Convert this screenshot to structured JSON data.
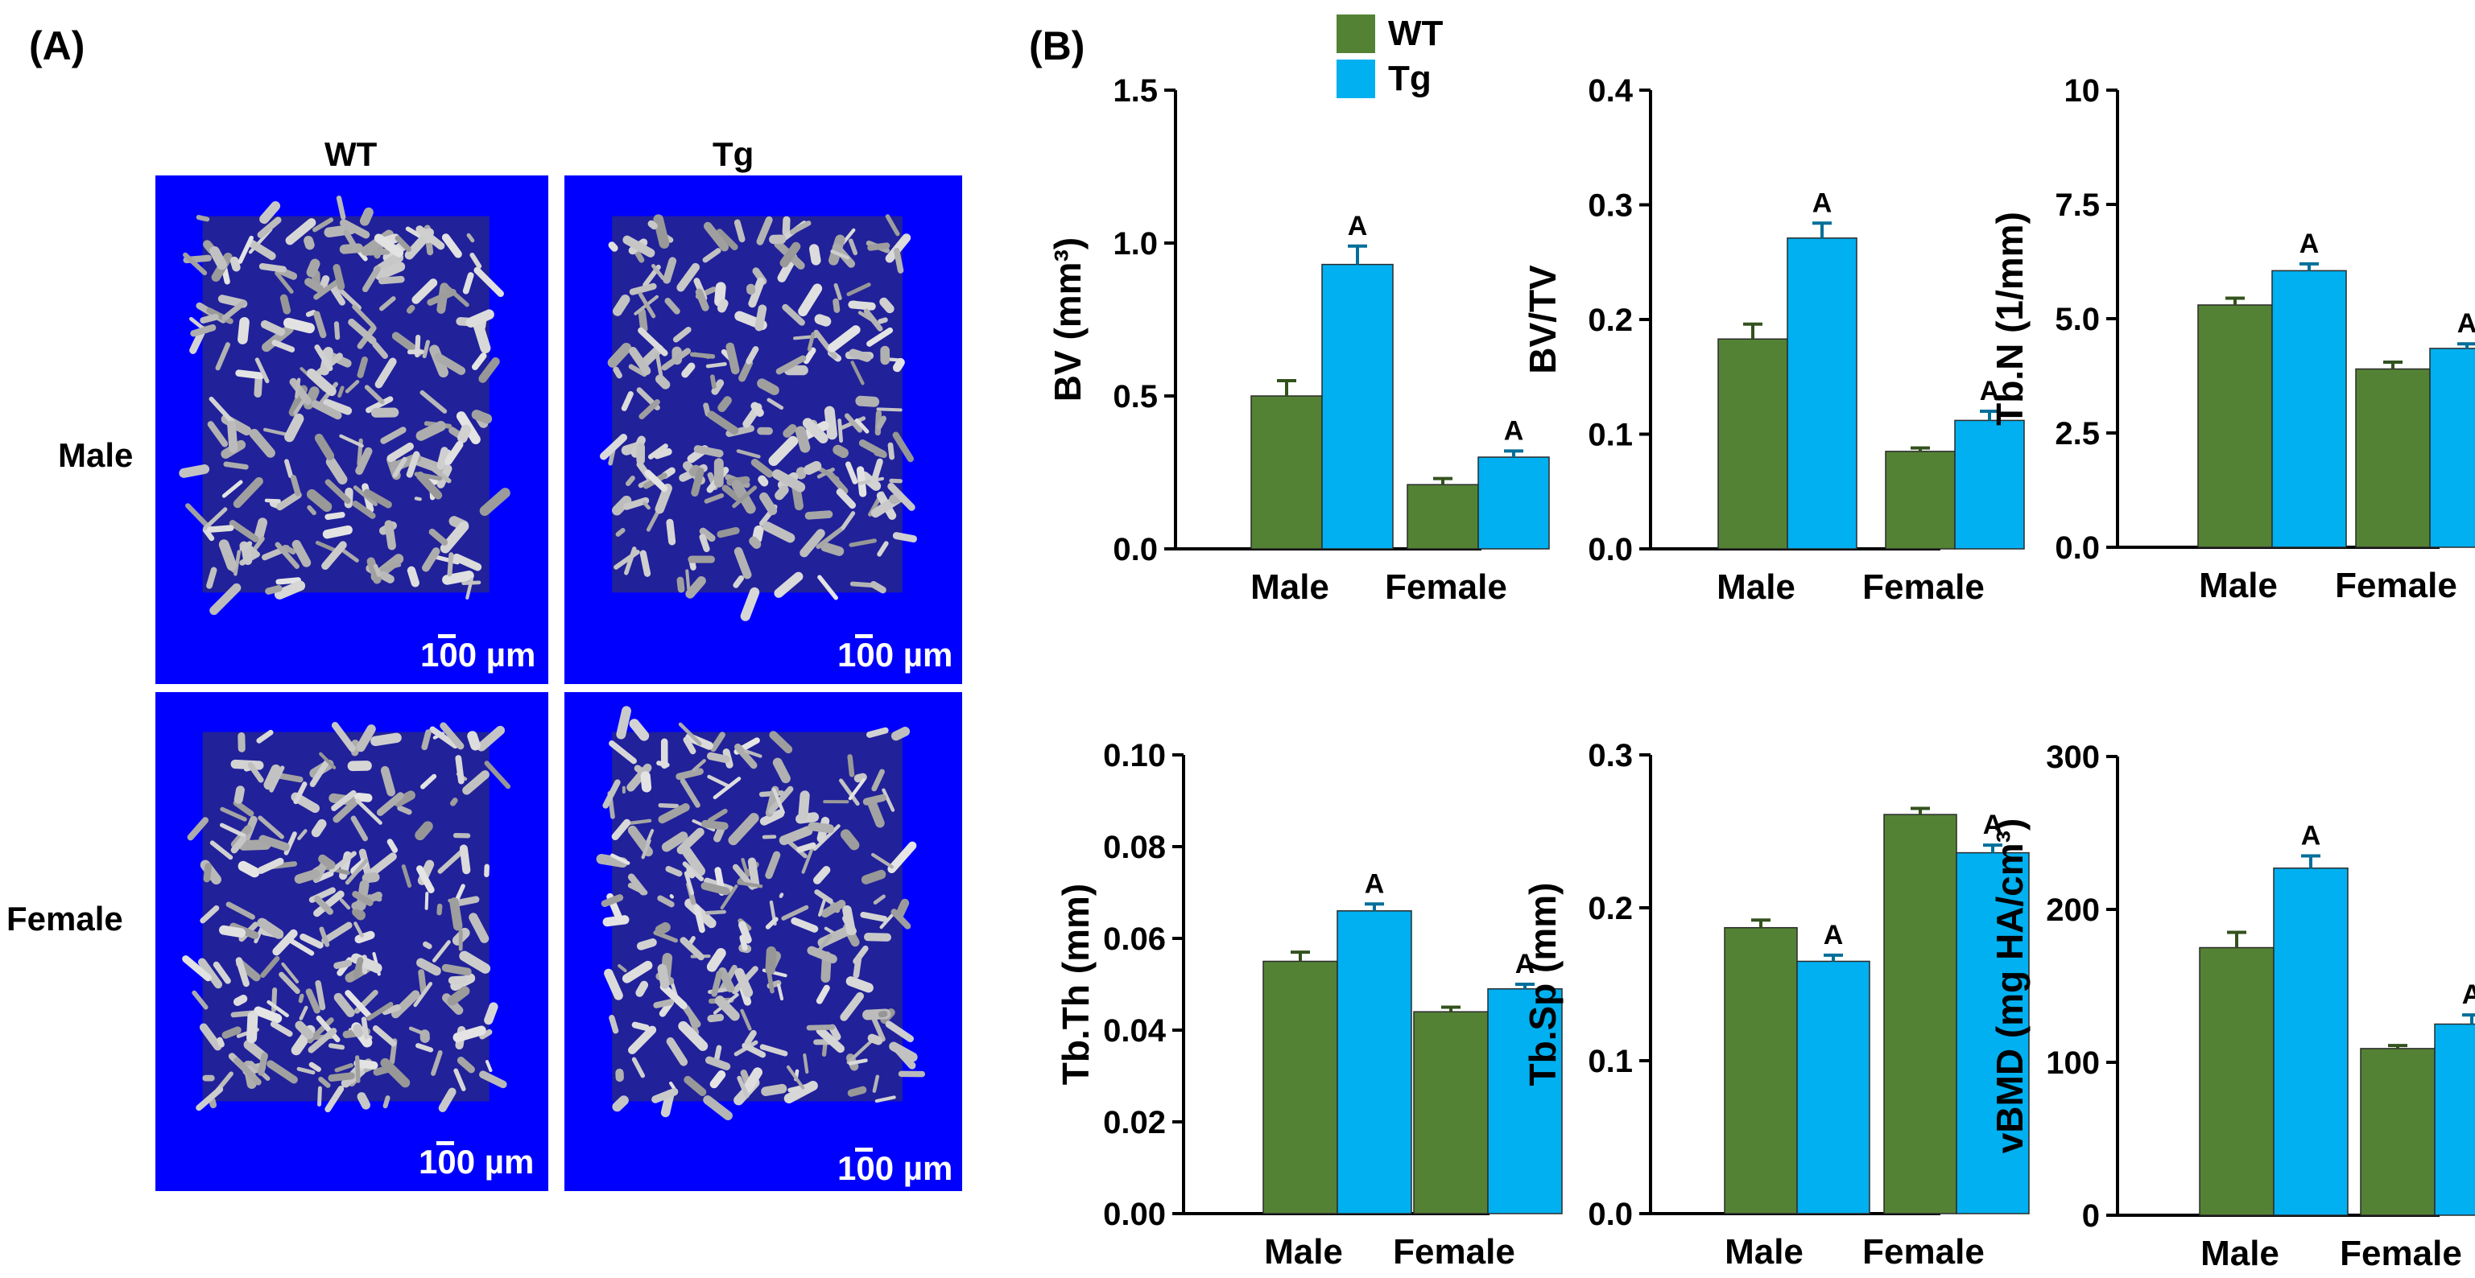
{
  "panel_a": {
    "label": "(A)",
    "columns": [
      "WT",
      "Tg"
    ],
    "rows": [
      "Male",
      "Female"
    ],
    "scale_bar_text": "100 µm",
    "image_bg": "#0000ff"
  },
  "panel_b": {
    "label": "(B)"
  },
  "legend": [
    {
      "name": "WT",
      "color": "#548235"
    },
    {
      "name": "Tg",
      "color": "#00b0f0"
    }
  ],
  "chart_data": [
    {
      "type": "bar",
      "title": "",
      "ylabel": "BV (mm³)",
      "categories": [
        "Male",
        "Female"
      ],
      "ylim": [
        0,
        1.5
      ],
      "yticks": [
        "0.0",
        "0.5",
        "1.0",
        "1.5"
      ],
      "series": [
        {
          "name": "WT",
          "values": [
            0.5,
            0.21
          ],
          "errors": [
            0.05,
            0.02
          ],
          "sig": [
            "",
            ""
          ]
        },
        {
          "name": "Tg",
          "values": [
            0.93,
            0.3
          ],
          "errors": [
            0.06,
            0.02
          ],
          "sig": [
            "A",
            "A"
          ]
        }
      ]
    },
    {
      "type": "bar",
      "title": "",
      "ylabel": "BV/TV",
      "categories": [
        "Male",
        "Female"
      ],
      "ylim": [
        0,
        0.4
      ],
      "yticks": [
        "0.0",
        "0.1",
        "0.2",
        "0.3",
        "0.4"
      ],
      "series": [
        {
          "name": "WT",
          "values": [
            0.183,
            0.085
          ],
          "errors": [
            0.013,
            0.003
          ],
          "sig": [
            "",
            ""
          ]
        },
        {
          "name": "Tg",
          "values": [
            0.271,
            0.112
          ],
          "errors": [
            0.013,
            0.008
          ],
          "sig": [
            "A",
            "A"
          ]
        }
      ]
    },
    {
      "type": "bar",
      "title": "",
      "ylabel": "Tb.N (1/mm)",
      "categories": [
        "Male",
        "Female"
      ],
      "ylim": [
        0,
        10
      ],
      "yticks": [
        "0.0",
        "2.5",
        "5.0",
        "7.5",
        "10"
      ],
      "series": [
        {
          "name": "WT",
          "values": [
            5.3,
            3.9
          ],
          "errors": [
            0.15,
            0.15
          ],
          "sig": [
            "",
            ""
          ]
        },
        {
          "name": "Tg",
          "values": [
            6.05,
            4.35
          ],
          "errors": [
            0.15,
            0.1
          ],
          "sig": [
            "A",
            "A"
          ]
        }
      ]
    },
    {
      "type": "bar",
      "title": "",
      "ylabel": "Tb.Th (mm)",
      "categories": [
        "Male",
        "Female"
      ],
      "ylim": [
        0,
        0.1
      ],
      "yticks": [
        "0.00",
        "0.02",
        "0.04",
        "0.06",
        "0.08",
        "0.10"
      ],
      "series": [
        {
          "name": "WT",
          "values": [
            0.055,
            0.044
          ],
          "errors": [
            0.002,
            0.001
          ],
          "sig": [
            "",
            ""
          ]
        },
        {
          "name": "Tg",
          "values": [
            0.066,
            0.049
          ],
          "errors": [
            0.0015,
            0.001
          ],
          "sig": [
            "A",
            "A"
          ]
        }
      ]
    },
    {
      "type": "bar",
      "title": "",
      "ylabel": "Tb.Sp (mm)",
      "categories": [
        "Male",
        "Female"
      ],
      "ylim": [
        0,
        0.3
      ],
      "yticks": [
        "0.0",
        "0.1",
        "0.2",
        "0.3"
      ],
      "series": [
        {
          "name": "WT",
          "values": [
            0.187,
            0.261
          ],
          "errors": [
            0.005,
            0.004
          ],
          "sig": [
            "",
            ""
          ]
        },
        {
          "name": "Tg",
          "values": [
            0.165,
            0.236
          ],
          "errors": [
            0.004,
            0.005
          ],
          "sig": [
            "A",
            "A"
          ]
        }
      ]
    },
    {
      "type": "bar",
      "title": "",
      "ylabel": "vBMD (mg HA/cm³)",
      "categories": [
        "Male",
        "Female"
      ],
      "ylim": [
        0,
        300
      ],
      "yticks": [
        "0",
        "100",
        "200",
        "300"
      ],
      "series": [
        {
          "name": "WT",
          "values": [
            175,
            109
          ],
          "errors": [
            10,
            2
          ],
          "sig": [
            "",
            ""
          ]
        },
        {
          "name": "Tg",
          "values": [
            227,
            125
          ],
          "errors": [
            8,
            6
          ],
          "sig": [
            "A",
            "A"
          ]
        }
      ]
    }
  ]
}
